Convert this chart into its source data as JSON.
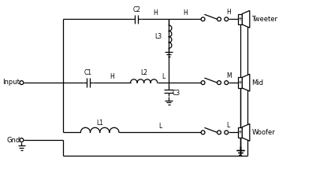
{
  "bg_color": "#ffffff",
  "line_color": "#000000",
  "labels": {
    "input": "Input",
    "gnd": "Gnd",
    "tweeter": "Tweeter",
    "mid": "Mid",
    "woofer": "Woofer",
    "C1": "C1",
    "C2": "C2",
    "C3": "C3",
    "L1": "L1",
    "L2": "L2",
    "L3": "L3",
    "H1": "H",
    "H2": "H",
    "H3": "H",
    "L_mid": "L",
    "L_woof": "L",
    "M": "M"
  }
}
